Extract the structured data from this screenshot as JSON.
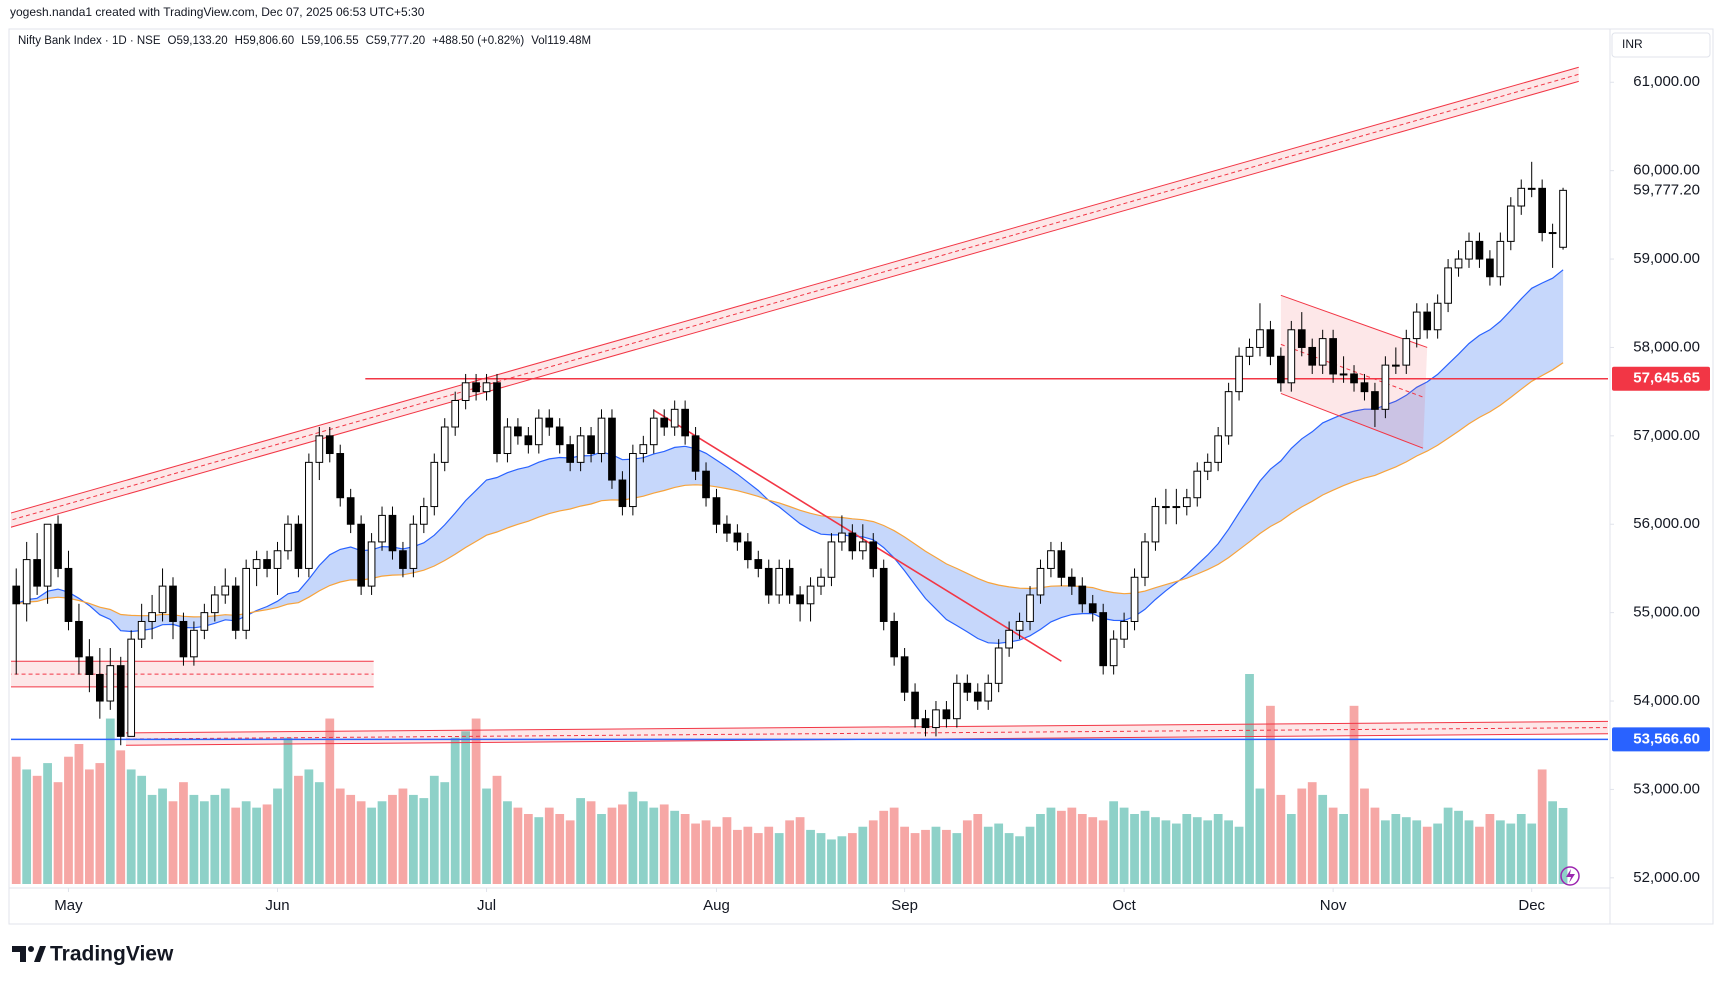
{
  "header": {
    "attribution": "yogesh.nanda1 created with TradingView.com, Dec 07, 2025 06:53 UTC+5:30",
    "symbol": "Nifty Bank Index · 1D · NSE",
    "ohlc": [
      "O59,133.20",
      "H59,806.60",
      "L59,106.55",
      "C59,777.20"
    ],
    "change": "+488.50 (+0.82%)",
    "volume": "Vol119.48M",
    "currency": "INR",
    "brand": "TradingView"
  },
  "chart_data": {
    "type": "candlestick",
    "candles": [
      [
        55300,
        55500,
        54300,
        55100
      ],
      [
        55100,
        55800,
        54900,
        55600
      ],
      [
        55600,
        55900,
        55200,
        55300
      ],
      [
        55300,
        56000,
        55100,
        56000
      ],
      [
        56000,
        56100,
        55400,
        55500
      ],
      [
        55500,
        55700,
        54800,
        54900
      ],
      [
        54900,
        55100,
        54300,
        54500
      ],
      [
        54500,
        54700,
        54100,
        54300
      ],
      [
        54300,
        54600,
        53800,
        54000
      ],
      [
        54000,
        54600,
        53900,
        54400
      ],
      [
        54400,
        54500,
        53500,
        53600
      ],
      [
        53600,
        54800,
        53600,
        54700
      ],
      [
        54700,
        55100,
        54600,
        54900
      ],
      [
        54900,
        55200,
        54700,
        55000
      ],
      [
        55000,
        55500,
        54900,
        55300
      ],
      [
        55300,
        55400,
        54700,
        54900
      ],
      [
        54900,
        55000,
        54400,
        54500
      ],
      [
        54500,
        54900,
        54400,
        54800
      ],
      [
        54800,
        55100,
        54700,
        55000
      ],
      [
        55000,
        55300,
        54900,
        55200
      ],
      [
        55200,
        55500,
        55100,
        55300
      ],
      [
        55300,
        55400,
        54700,
        54800
      ],
      [
        54800,
        55600,
        54700,
        55500
      ],
      [
        55500,
        55700,
        55300,
        55600
      ],
      [
        55600,
        55700,
        55400,
        55500
      ],
      [
        55500,
        55800,
        55200,
        55700
      ],
      [
        55700,
        56100,
        55600,
        56000
      ],
      [
        56000,
        56100,
        55400,
        55500
      ],
      [
        55500,
        56800,
        55400,
        56700
      ],
      [
        56700,
        57100,
        56500,
        57000
      ],
      [
        57000,
        57100,
        56700,
        56800
      ],
      [
        56800,
        56900,
        56200,
        56300
      ],
      [
        56300,
        56400,
        55900,
        56000
      ],
      [
        56000,
        56100,
        55200,
        55300
      ],
      [
        55300,
        55900,
        55200,
        55800
      ],
      [
        55800,
        56200,
        55700,
        56100
      ],
      [
        56100,
        56200,
        55600,
        55700
      ],
      [
        55700,
        55800,
        55400,
        55500
      ],
      [
        55500,
        56100,
        55400,
        56000
      ],
      [
        56000,
        56300,
        55900,
        56200
      ],
      [
        56200,
        56800,
        56100,
        56700
      ],
      [
        56700,
        57200,
        56600,
        57100
      ],
      [
        57100,
        57500,
        57000,
        57400
      ],
      [
        57400,
        57700,
        57300,
        57600
      ],
      [
        57600,
        57700,
        57400,
        57500
      ],
      [
        57500,
        57700,
        57400,
        57600
      ],
      [
        57600,
        57700,
        56700,
        56800
      ],
      [
        56800,
        57200,
        56700,
        57100
      ],
      [
        57100,
        57200,
        56900,
        57000
      ],
      [
        57000,
        57100,
        56800,
        56900
      ],
      [
        56900,
        57300,
        56800,
        57200
      ],
      [
        57200,
        57300,
        57000,
        57100
      ],
      [
        57100,
        57200,
        56800,
        56900
      ],
      [
        56900,
        57000,
        56600,
        56700
      ],
      [
        56700,
        57100,
        56600,
        57000
      ],
      [
        57000,
        57100,
        56700,
        56800
      ],
      [
        56800,
        57300,
        56700,
        57200
      ],
      [
        57200,
        57300,
        56400,
        56500
      ],
      [
        56500,
        56600,
        56100,
        56200
      ],
      [
        56200,
        56900,
        56100,
        56800
      ],
      [
        56800,
        57000,
        56700,
        56900
      ],
      [
        56900,
        57300,
        56800,
        57200
      ],
      [
        57200,
        57300,
        57000,
        57100
      ],
      [
        57100,
        57400,
        57000,
        57300
      ],
      [
        57300,
        57400,
        56900,
        57000
      ],
      [
        57000,
        57100,
        56500,
        56600
      ],
      [
        56600,
        56700,
        56200,
        56300
      ],
      [
        56300,
        56400,
        55900,
        56000
      ],
      [
        56000,
        56100,
        55800,
        55900
      ],
      [
        55900,
        56000,
        55700,
        55800
      ],
      [
        55800,
        55900,
        55500,
        55600
      ],
      [
        55600,
        55700,
        55400,
        55500
      ],
      [
        55500,
        55600,
        55100,
        55200
      ],
      [
        55200,
        55600,
        55100,
        55500
      ],
      [
        55500,
        55600,
        55100,
        55200
      ],
      [
        55200,
        55300,
        54900,
        55100
      ],
      [
        55100,
        55400,
        54900,
        55300
      ],
      [
        55300,
        55500,
        55200,
        55400
      ],
      [
        55400,
        55900,
        55300,
        55800
      ],
      [
        55800,
        56100,
        55700,
        55900
      ],
      [
        55900,
        56000,
        55600,
        55700
      ],
      [
        55700,
        56000,
        55600,
        55800
      ],
      [
        55800,
        55900,
        55400,
        55500
      ],
      [
        55500,
        55600,
        54800,
        54900
      ],
      [
        54900,
        55000,
        54400,
        54500
      ],
      [
        54500,
        54600,
        54000,
        54100
      ],
      [
        54100,
        54200,
        53700,
        53800
      ],
      [
        53800,
        53900,
        53600,
        53700
      ],
      [
        53700,
        54000,
        53600,
        53900
      ],
      [
        53900,
        54000,
        53700,
        53800
      ],
      [
        53800,
        54300,
        53700,
        54200
      ],
      [
        54200,
        54300,
        54000,
        54100
      ],
      [
        54100,
        54200,
        53900,
        54000
      ],
      [
        54000,
        54300,
        53900,
        54200
      ],
      [
        54200,
        54700,
        54100,
        54600
      ],
      [
        54600,
        54900,
        54500,
        54800
      ],
      [
        54800,
        55000,
        54700,
        54900
      ],
      [
        54900,
        55300,
        54800,
        55200
      ],
      [
        55200,
        55600,
        55100,
        55500
      ],
      [
        55500,
        55800,
        55400,
        55700
      ],
      [
        55700,
        55800,
        55300,
        55400
      ],
      [
        55400,
        55500,
        55200,
        55300
      ],
      [
        55300,
        55400,
        55000,
        55100
      ],
      [
        55100,
        55200,
        54900,
        55000
      ],
      [
        55000,
        55100,
        54300,
        54400
      ],
      [
        54400,
        54800,
        54300,
        54700
      ],
      [
        54700,
        55000,
        54600,
        54900
      ],
      [
        54900,
        55500,
        54800,
        55400
      ],
      [
        55400,
        55900,
        55300,
        55800
      ],
      [
        55800,
        56300,
        55700,
        56200
      ],
      [
        56200,
        56400,
        56000,
        56200
      ],
      [
        56200,
        56400,
        56000,
        56200
      ],
      [
        56200,
        56400,
        56100,
        56300
      ],
      [
        56300,
        56700,
        56200,
        56600
      ],
      [
        56600,
        56800,
        56500,
        56700
      ],
      [
        56700,
        57100,
        56600,
        57000
      ],
      [
        57000,
        57600,
        56900,
        57500
      ],
      [
        57500,
        58000,
        57400,
        57900
      ],
      [
        57900,
        58100,
        57800,
        58000
      ],
      [
        58000,
        58500,
        57900,
        58200
      ],
      [
        58200,
        58300,
        57800,
        57900
      ],
      [
        57900,
        58000,
        57500,
        57600
      ],
      [
        57600,
        58300,
        57500,
        58200
      ],
      [
        58200,
        58400,
        57900,
        58000
      ],
      [
        58000,
        58100,
        57700,
        57800
      ],
      [
        57800,
        58200,
        57700,
        58100
      ],
      [
        58100,
        58200,
        57600,
        57700
      ],
      [
        57700,
        57900,
        57600,
        57700
      ],
      [
        57700,
        57800,
        57500,
        57600
      ],
      [
        57600,
        57700,
        57400,
        57500
      ],
      [
        57500,
        57600,
        57100,
        57300
      ],
      [
        57300,
        57900,
        57200,
        57800
      ],
      [
        57800,
        58000,
        57700,
        57800
      ],
      [
        57800,
        58200,
        57700,
        58100
      ],
      [
        58100,
        58500,
        58000,
        58400
      ],
      [
        58400,
        58500,
        58100,
        58200
      ],
      [
        58200,
        58600,
        58100,
        58500
      ],
      [
        58500,
        59000,
        58400,
        58900
      ],
      [
        58900,
        59100,
        58800,
        59000
      ],
      [
        59000,
        59300,
        58900,
        59200
      ],
      [
        59200,
        59300,
        58900,
        59000
      ],
      [
        59000,
        59100,
        58700,
        58800
      ],
      [
        58800,
        59300,
        58700,
        59200
      ],
      [
        59200,
        59700,
        59100,
        59600
      ],
      [
        59600,
        59900,
        59500,
        59800
      ],
      [
        59800,
        60100,
        59700,
        59800
      ],
      [
        59800,
        59900,
        59200,
        59300
      ],
      [
        59300,
        59400,
        58900,
        59300
      ],
      [
        59133.2,
        59806.6,
        59106.55,
        59777.2
      ]
    ],
    "volume": [
      200,
      180,
      170,
      190,
      160,
      200,
      220,
      180,
      190,
      260,
      210,
      180,
      170,
      140,
      150,
      130,
      160,
      140,
      130,
      140,
      150,
      120,
      130,
      120,
      125,
      150,
      230,
      170,
      180,
      160,
      260,
      150,
      140,
      130,
      120,
      130,
      140,
      150,
      140,
      135,
      170,
      160,
      230,
      240,
      260,
      150,
      170,
      130,
      120,
      110,
      105,
      120,
      110,
      100,
      135,
      130,
      110,
      120,
      125,
      145,
      130,
      120,
      125,
      115,
      110,
      95,
      100,
      90,
      105,
      85,
      90,
      80,
      90,
      80,
      100,
      105,
      85,
      80,
      70,
      75,
      80,
      90,
      100,
      115,
      120,
      90,
      80,
      85,
      90,
      85,
      80,
      100,
      110,
      90,
      95,
      80,
      75,
      90,
      110,
      120,
      115,
      120,
      110,
      105,
      100,
      130,
      120,
      110,
      115,
      105,
      100,
      95,
      110,
      105,
      100,
      110,
      100,
      90,
      330,
      150,
      280,
      140,
      110,
      150,
      160,
      140,
      120,
      110,
      280,
      150,
      120,
      100,
      110,
      105,
      100,
      90,
      95,
      120,
      115,
      100,
      90,
      110,
      100,
      95,
      110,
      95,
      180,
      130,
      119.48
    ],
    "xlim": [
      -0.5,
      152.3
    ],
    "xticks": [
      {
        "value": 5,
        "label": "May"
      },
      {
        "value": 25,
        "label": "Jun"
      },
      {
        "value": 45,
        "label": "Jul"
      },
      {
        "value": 67,
        "label": "Aug"
      },
      {
        "value": 85,
        "label": "Sep"
      },
      {
        "value": 106,
        "label": "Oct"
      },
      {
        "value": 126,
        "label": "Nov"
      },
      {
        "value": 145,
        "label": "Dec"
      }
    ],
    "ylim": [
      51930,
      61580
    ],
    "yticks": [
      {
        "value": 52000,
        "label": "52,000.00"
      },
      {
        "value": 53000,
        "label": "53,000.00"
      },
      {
        "value": 54000,
        "label": "54,000.00"
      },
      {
        "value": 55000,
        "label": "55,000.00"
      },
      {
        "value": 56000,
        "label": "56,000.00"
      },
      {
        "value": 57000,
        "label": "57,000.00"
      },
      {
        "value": 58000,
        "label": "58,000.00"
      },
      {
        "value": 59000,
        "label": "59,000.00"
      },
      {
        "value": 60000,
        "label": "60,000.00"
      },
      {
        "value": 61000,
        "label": "61,000.00"
      }
    ],
    "last_price": {
      "value": 59777.2,
      "label": "59,777.20"
    },
    "price_lines": [
      {
        "value": 57645.65,
        "label": "57,645.65",
        "color": "#f23645",
        "start": 33.4
      },
      {
        "value": 53566.6,
        "label": "53,566.60",
        "color": "#2962ff",
        "start": -0.5
      }
    ],
    "channels": [
      {
        "color": "#f23645",
        "upper": [
          [
            -1,
            56110
          ],
          [
            149.5,
            61170
          ]
        ],
        "lower": [
          [
            -1,
            55950
          ],
          [
            149.5,
            61010
          ]
        ]
      },
      {
        "color": "#f23645",
        "upper": [
          [
            -1.5,
            54450
          ],
          [
            34.2,
            54450
          ]
        ],
        "lower": [
          [
            -1.5,
            54160
          ],
          [
            34.2,
            54160
          ]
        ]
      },
      {
        "color": "#f23645",
        "upper": [
          [
            10.5,
            53640
          ],
          [
            152.6,
            53770
          ]
        ],
        "lower": [
          [
            10.5,
            53500
          ],
          [
            152.6,
            53630
          ]
        ]
      },
      {
        "color": "#f23645",
        "upper": [
          [
            121,
            58590
          ],
          [
            135,
            58000
          ]
        ],
        "lower": [
          [
            121,
            57480
          ],
          [
            134.6,
            56860
          ]
        ]
      }
    ],
    "trendlines": [
      {
        "color": "#f23645",
        "points": [
          [
            61,
            57290
          ],
          [
            100,
            54450
          ]
        ]
      }
    ],
    "colors": {
      "up": "#ffffff",
      "down": "#000000",
      "volume_up": "#8ed1c8",
      "volume_down": "#f6a7a5",
      "ema_fill": "#bcd0fa",
      "ema_fast": "#2962ff",
      "ema_slow": "#f7a33b"
    }
  }
}
